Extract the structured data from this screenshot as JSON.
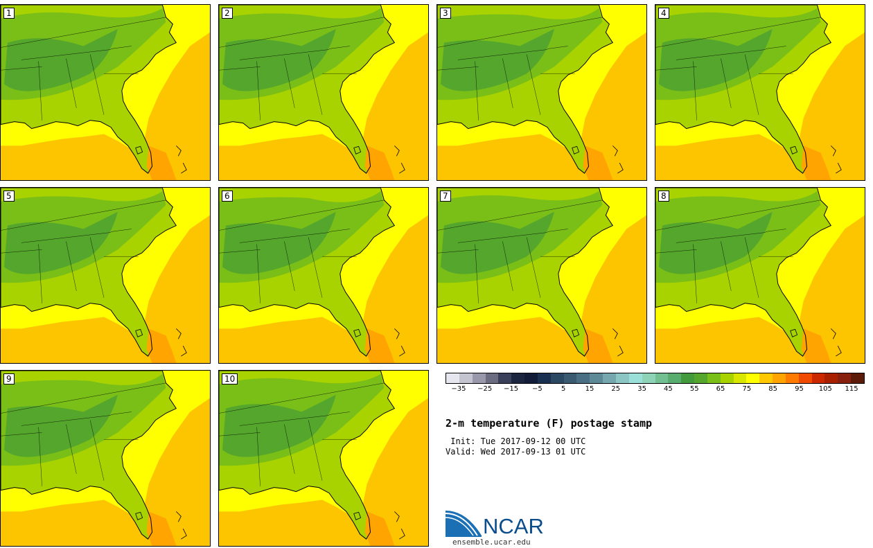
{
  "panels": [
    {
      "label": "1"
    },
    {
      "label": "2"
    },
    {
      "label": "3"
    },
    {
      "label": "4"
    },
    {
      "label": "5"
    },
    {
      "label": "6"
    },
    {
      "label": "7"
    },
    {
      "label": "8"
    },
    {
      "label": "9"
    },
    {
      "label": "10"
    }
  ],
  "colorbar": {
    "colors": [
      "#e6e6ee",
      "#c4c4d0",
      "#9898aa",
      "#6c6c80",
      "#3a3f5a",
      "#1c2540",
      "#101c38",
      "#1a3050",
      "#2a4862",
      "#3a5a72",
      "#4a6e84",
      "#5e8a98",
      "#76a6ae",
      "#8cc6c4",
      "#9ae0d8",
      "#8ed2b8",
      "#72c092",
      "#58ac6e",
      "#429a3c",
      "#54a62c",
      "#7abe18",
      "#a8d200",
      "#d8e600",
      "#ffff00",
      "#ffc800",
      "#ffa400",
      "#ff7a00",
      "#f04a00",
      "#cc2800",
      "#a82000",
      "#882010",
      "#5c1a08"
    ],
    "ticks": [
      "−35",
      "−25",
      "−15",
      "−5",
      "5",
      "15",
      "25",
      "35",
      "45",
      "55",
      "65",
      "75",
      "85",
      "95",
      "105",
      "115"
    ],
    "tick_values": [
      -35,
      -25,
      -15,
      -5,
      5,
      15,
      25,
      35,
      45,
      55,
      65,
      75,
      85,
      95,
      105,
      115
    ],
    "min": -40,
    "max": 120
  },
  "title": "2-m temperature (F) postage stamp",
  "init": " Init: Tue 2017-09-12 00 UTC",
  "valid": "Valid: Wed 2017-09-13 01 UTC",
  "logo": {
    "name": "NCAR",
    "url": "ensemble.ucar.edu"
  }
}
